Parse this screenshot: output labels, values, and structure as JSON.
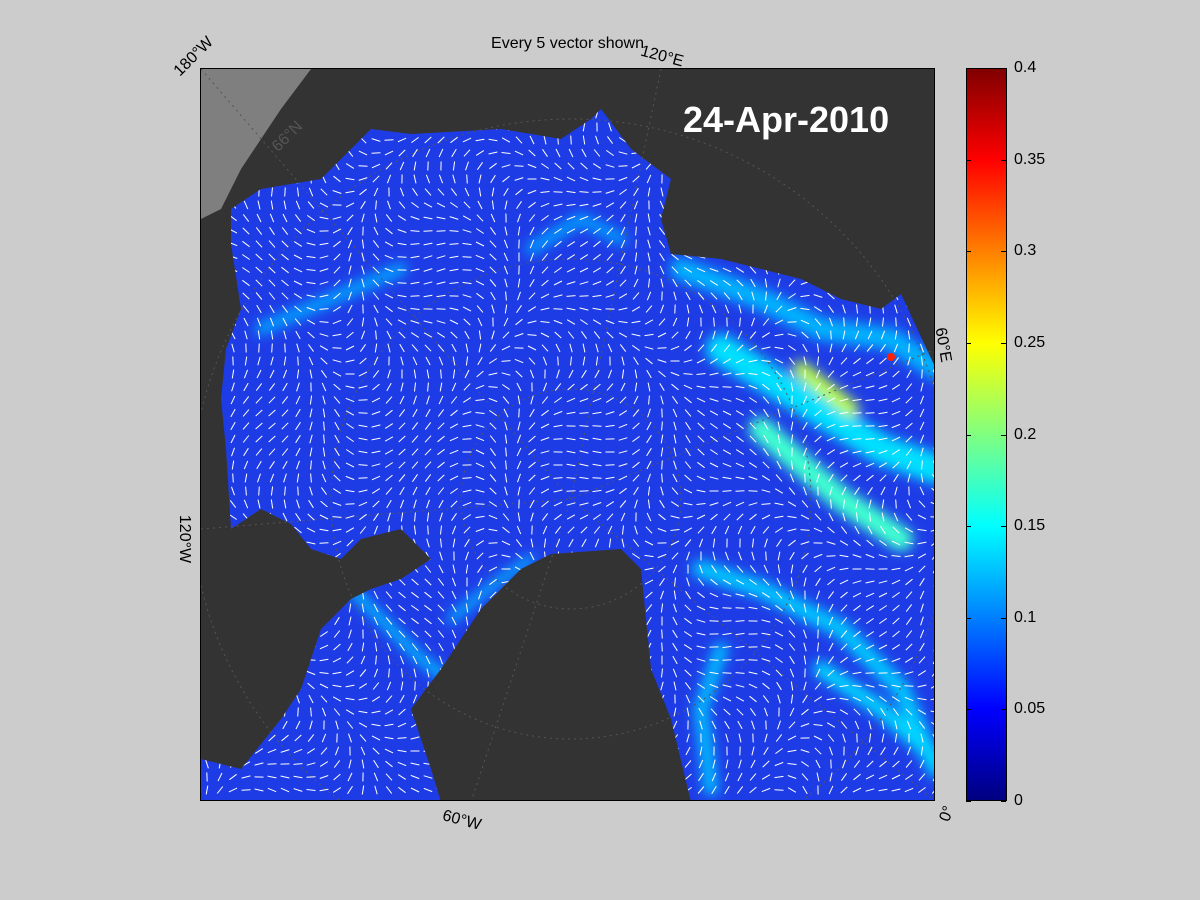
{
  "title": "Every 5 vector shown",
  "date": "24-Apr-2010",
  "meridian_labels": {
    "lon_180w": "180°W",
    "lon_120e": "120°E",
    "lon_60e": "60°E",
    "lon_120w": "120°W",
    "lon_60w": "60°W",
    "lon_0": "0°",
    "lat_66n": "66°N"
  },
  "colorbar": {
    "min": 0,
    "max": 0.4,
    "ticks": [
      "0",
      "0.05",
      "0.1",
      "0.15",
      "0.2",
      "0.25",
      "0.3",
      "0.35",
      "0.4"
    ],
    "colormap": "jet"
  },
  "colors": {
    "ocean_ice": "#1e3ce6",
    "land": "#333333",
    "land_outside": "#7f7f7f",
    "vectors": "#ffffff",
    "figure_background": "#cccccc"
  }
}
